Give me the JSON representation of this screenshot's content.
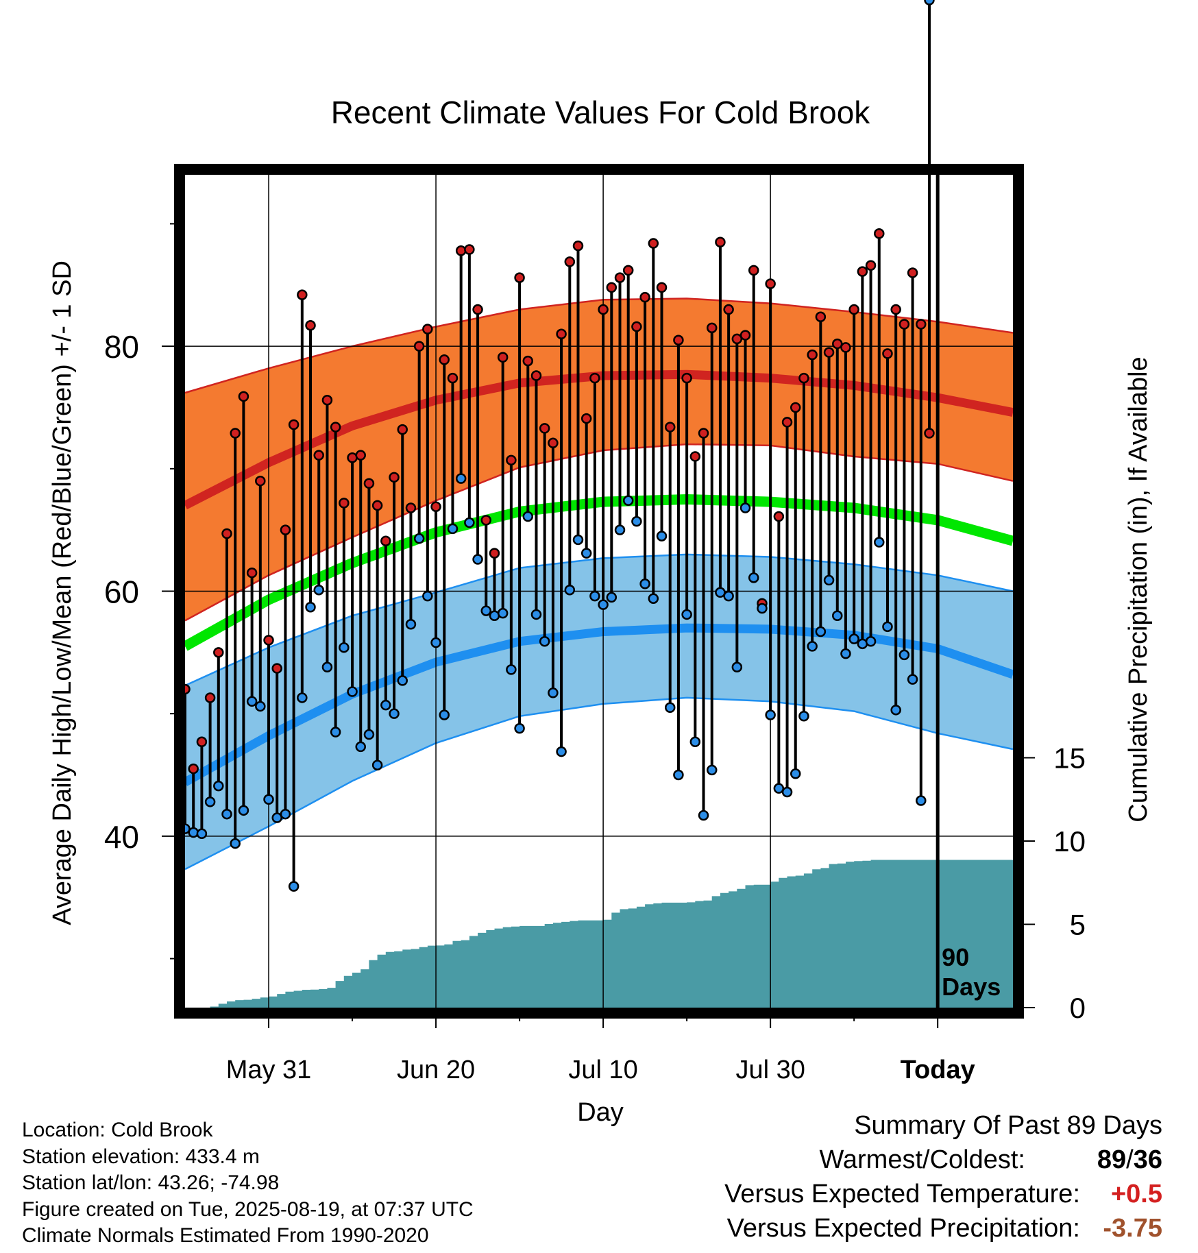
{
  "chart_data": {
    "type": "line",
    "title": "Recent Climate Values For Cold Brook",
    "xlabel": "Day",
    "ylabel_left": "Average Daily High/Low/Mean (Red/Blue/Green) +/- 1 SD",
    "ylabel_right": "Cumulative Precipitation (in), If Available",
    "x_ticks": [
      {
        "day": 10,
        "label": "May 31"
      },
      {
        "day": 30,
        "label": "Jun 20"
      },
      {
        "day": 50,
        "label": "Jul 10"
      },
      {
        "day": 70,
        "label": "Jul 30"
      },
      {
        "day": 90,
        "label": "Today"
      }
    ],
    "xlim": [
      0,
      99
    ],
    "y_ticks": [
      40,
      60,
      80
    ],
    "ylim": [
      26,
      94
    ],
    "y2_ticks": [
      0,
      5,
      10,
      15
    ],
    "y2lim": [
      0,
      50
    ],
    "today_marker": {
      "day": 90,
      "label_line1": "90",
      "label_line2": "Days"
    },
    "colors": {
      "high_band": "#f47a30",
      "high_mean": "#d02420",
      "low_band": "#85c3e8",
      "low_mean": "#1e8ff0",
      "mean": "#00e600",
      "precip": "#4a9ba5",
      "high_dot": "#d02020",
      "low_dot": "#2c8ee8"
    },
    "normals": {
      "day": [
        0,
        10,
        20,
        30,
        40,
        50,
        60,
        70,
        80,
        90,
        99
      ],
      "high_mean": [
        67,
        70.5,
        73.5,
        75.6,
        77,
        77.6,
        77.7,
        77.4,
        76.8,
        75.8,
        74.6
      ],
      "high_upper": [
        76.2,
        78.2,
        80,
        81.6,
        83,
        83.8,
        83.9,
        83.5,
        82.8,
        82,
        81.1
      ],
      "high_lower": [
        57.6,
        61.3,
        64.4,
        67.4,
        70.1,
        71.5,
        72,
        71.9,
        71,
        70.4,
        69
      ],
      "mean": [
        55.5,
        59.3,
        62.3,
        64.8,
        66.5,
        67.3,
        67.5,
        67.3,
        66.8,
        65.8,
        64.1
      ],
      "low_mean": [
        44.4,
        48.2,
        51.6,
        54.2,
        55.9,
        56.7,
        57,
        56.9,
        56.4,
        55.3,
        53.2
      ],
      "low_upper": [
        52.3,
        55.4,
        58,
        59.9,
        61.9,
        62.7,
        63,
        62.8,
        62.2,
        61.3,
        60
      ],
      "low_lower": [
        37.3,
        40.8,
        44.5,
        47.6,
        49.8,
        50.8,
        51.3,
        51,
        50.2,
        48.4,
        47.1
      ]
    },
    "series": [
      {
        "name": "High",
        "values": [
          52,
          45.5,
          47.7,
          51.3,
          55,
          64.7,
          72.9,
          75.9,
          61.5,
          69,
          56,
          53.7,
          65,
          73.6,
          84.2,
          81.7,
          71.1,
          75.6,
          73.4,
          67.2,
          70.9,
          71.1,
          68.8,
          67,
          64.1,
          69.3,
          73.2,
          66.8,
          80,
          81.4,
          66.9,
          78.9,
          77.4,
          87.8,
          87.9,
          83,
          65.8,
          63.1,
          79.1,
          70.7,
          85.6,
          78.8,
          77.6,
          73.3,
          72.1,
          81,
          86.9,
          88.2,
          74.1,
          77.4,
          83,
          84.8,
          85.6,
          86.2,
          81.6,
          84,
          88.4,
          84.8,
          73.4,
          80.5,
          77.4,
          71,
          72.9,
          81.5,
          88.5,
          83,
          80.6,
          80.9,
          86.2,
          59,
          85.1,
          66.1,
          73.8,
          75,
          77.4,
          79.3,
          82.4,
          79.5,
          80.2,
          79.9,
          83,
          86.1,
          86.6,
          89.2,
          79.4,
          83,
          81.8,
          86,
          81.8,
          72.9
        ]
      },
      {
        "name": "Low",
        "values": [
          40.6,
          40.3,
          40.2,
          42.8,
          44.1,
          41.8,
          39.4,
          42.1,
          51,
          50.6,
          43,
          41.5,
          41.8,
          35.9,
          51.3,
          58.7,
          60.1,
          53.8,
          48.5,
          55.4,
          51.8,
          47.3,
          48.3,
          45.8,
          50.7,
          50,
          52.7,
          57.3,
          64.3,
          59.6,
          55.8,
          49.9,
          65.1,
          69.2,
          65.6,
          62.6,
          58.4,
          58,
          58.2,
          53.6,
          48.8,
          66.1,
          58.1,
          55.9,
          51.7,
          46.9,
          60.1,
          64.2,
          63.1,
          59.6,
          58.9,
          59.5,
          65,
          67.4,
          65.7,
          60.6,
          59.4,
          64.5,
          50.5,
          45,
          58.1,
          47.7,
          41.7,
          45.4,
          59.9,
          59.6,
          53.8,
          66.8,
          61.1,
          58.6,
          49.9,
          43.9,
          43.6,
          45.1,
          49.8,
          55.5,
          56.7,
          60.9,
          58,
          54.9,
          56.1,
          55.7,
          55.9,
          64,
          57.1,
          50.3,
          54.8,
          52.8,
          42.9
        ]
      }
    ],
    "precip": {
      "day": [
        0,
        1,
        2,
        3,
        4,
        5,
        6,
        7,
        8,
        9,
        10,
        11,
        12,
        13,
        14,
        15,
        16,
        17,
        18,
        19,
        20,
        21,
        22,
        23,
        24,
        25,
        26,
        27,
        28,
        29,
        30,
        31,
        32,
        33,
        34,
        35,
        36,
        37,
        38,
        39,
        40,
        41,
        42,
        43,
        44,
        45,
        46,
        47,
        48,
        49,
        50,
        51,
        52,
        53,
        54,
        55,
        56,
        57,
        58,
        59,
        60,
        61,
        62,
        63,
        64,
        65,
        66,
        67,
        68,
        69,
        70,
        71,
        72,
        73,
        74,
        75,
        76,
        77,
        78,
        79,
        80,
        81,
        82,
        83,
        84,
        85,
        86,
        87,
        88,
        89,
        90,
        91,
        92,
        93,
        94,
        95,
        96,
        97,
        98,
        99
      ],
      "cumulative": [
        0,
        0,
        0,
        0.06,
        0.23,
        0.37,
        0.45,
        0.47,
        0.53,
        0.61,
        0.67,
        0.82,
        0.96,
        1.01,
        1.07,
        1.08,
        1.11,
        1.19,
        1.6,
        1.9,
        2.1,
        2.3,
        2.85,
        3.18,
        3.34,
        3.38,
        3.48,
        3.52,
        3.63,
        3.72,
        3.73,
        3.8,
        4,
        4.05,
        4.3,
        4.49,
        4.65,
        4.75,
        4.83,
        4.87,
        4.9,
        4.9,
        4.9,
        5.02,
        5.09,
        5.15,
        5.2,
        5.24,
        5.24,
        5.24,
        5.28,
        5.7,
        5.91,
        5.95,
        6.06,
        6.2,
        6.26,
        6.3,
        6.3,
        6.3,
        6.32,
        6.4,
        6.43,
        6.69,
        6.88,
        6.98,
        7.13,
        7.35,
        7.38,
        7.38,
        7.56,
        7.79,
        7.88,
        7.92,
        8.05,
        8.3,
        8.38,
        8.62,
        8.65,
        8.76,
        8.8,
        8.82,
        8.87,
        8.87,
        8.87,
        8.87,
        8.87,
        8.87,
        8.87,
        8.87,
        8.87,
        8.87,
        8.87,
        8.87,
        8.87,
        8.87,
        8.87,
        8.87,
        8.87,
        8.87
      ]
    }
  },
  "footer": {
    "line1": "Location: Cold Brook",
    "line2": "Station elevation: 433.4 m",
    "line3": "Station lat/lon: 43.26; -74.98",
    "line4": "Figure created on Tue, 2025-08-19, at 07:37 UTC",
    "line5": "Climate Normals Estimated From 1990-2020"
  },
  "summary": {
    "heading": "Summary Of Past 89 Days",
    "warmest_coldest_label": "Warmest/Coldest:",
    "warmest": "89",
    "slash": "/",
    "coldest": "36",
    "temp_label": "Versus Expected Temperature:",
    "temp_value": "+0.5",
    "temp_color": "#d42020",
    "precip_label": "Versus Expected Precipitation:",
    "precip_value": "-3.75",
    "precip_color": "#a0522d"
  }
}
